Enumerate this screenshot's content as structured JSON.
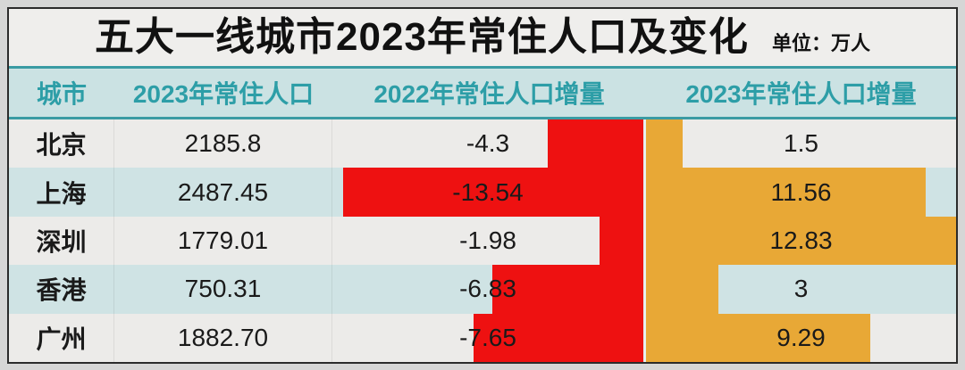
{
  "title": {
    "text": "五大一线城市2023年常住人口及变化",
    "unit_label": "单位：万人"
  },
  "colors": {
    "red_bar": "#ee1111",
    "orange_bar": "#e8a836",
    "header_text_teal": "#2d9ea7",
    "header_background": "#cbe2e3",
    "row_gray": "#ecebe9",
    "row_teal": "#cfe3e4"
  },
  "table": {
    "columns": [
      "城市",
      "2023年常住人口",
      "2022年常住人口增量",
      "2023年常住人口增量"
    ],
    "rows": [
      {
        "city": "北京",
        "population": "2185.8",
        "delta_2022": "-4.3",
        "delta_2023": "1.5"
      },
      {
        "city": "上海",
        "population": "2487.45",
        "delta_2022": "-13.54",
        "delta_2023": "11.56"
      },
      {
        "city": "深圳",
        "population": "1779.01",
        "delta_2022": "-1.98",
        "delta_2023": "12.83"
      },
      {
        "city": "香港",
        "population": "750.31",
        "delta_2022": "-6.83",
        "delta_2023": "3"
      },
      {
        "city": "广州",
        "population": "1882.70",
        "delta_2022": "-7.65",
        "delta_2023": "9.29"
      }
    ],
    "bar_axis": {
      "red_max": 14.04,
      "orange_max": 12.83
    }
  },
  "chart_data": {
    "type": "bar",
    "title": "五大一线城市2023年常住人口及变化",
    "unit": "万人",
    "categories": [
      "北京",
      "上海",
      "深圳",
      "香港",
      "广州"
    ],
    "series": [
      {
        "name": "2023年常住人口",
        "values": [
          2185.8,
          2487.45,
          1779.01,
          750.31,
          1882.7
        ]
      },
      {
        "name": "2022年常住人口增量",
        "values": [
          -4.3,
          -13.54,
          -1.98,
          -6.83,
          -7.65
        ],
        "color": "#ee1111"
      },
      {
        "name": "2023年常住人口增量",
        "values": [
          1.5,
          11.56,
          12.83,
          3,
          9.29
        ],
        "color": "#e8a836"
      }
    ],
    "layout": "table with embedded horizontal bars; negative 2022 deltas drawn as red bars growing leftward from column divider, positive 2023 deltas as orange bars growing rightward; value labels centered in each column",
    "xlim_red": [
      -14.04,
      0
    ],
    "xlim_orange": [
      0,
      12.83
    ],
    "grid": false,
    "legend": false
  }
}
